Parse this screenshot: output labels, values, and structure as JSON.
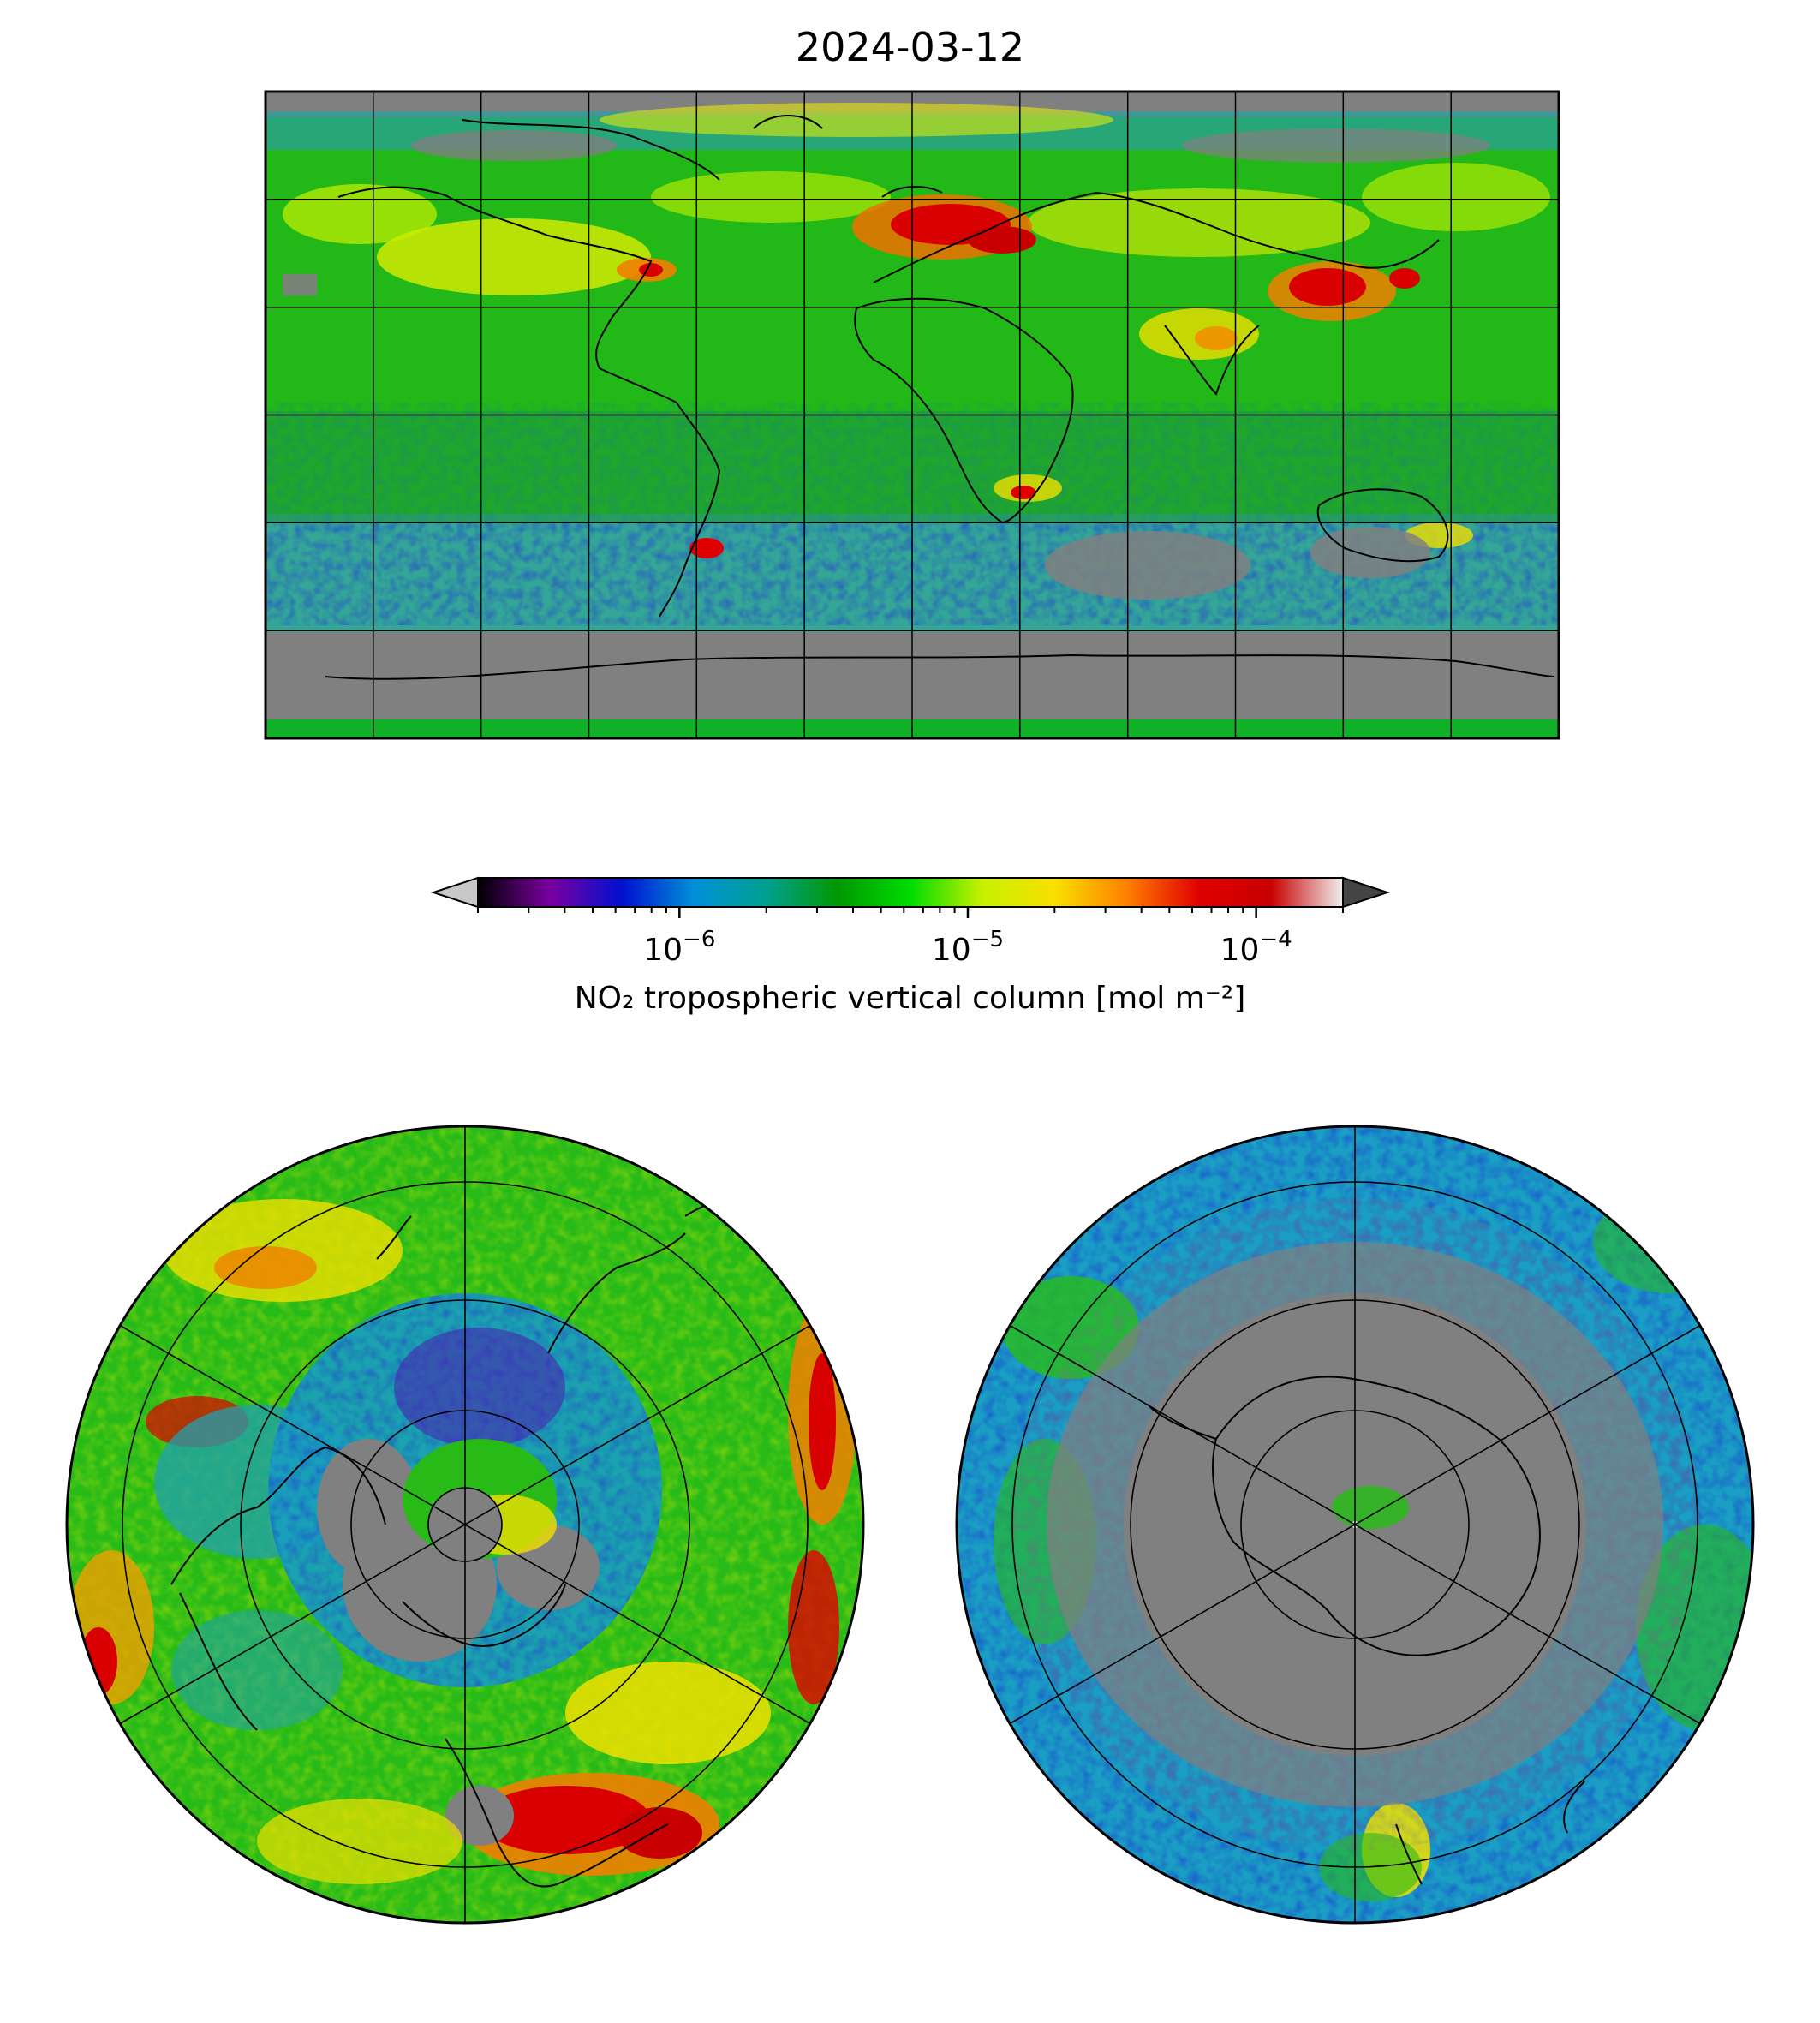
{
  "title": "2024-03-12",
  "colorbar": {
    "label": "NO₂ tropospheric vertical column [mol m⁻²]",
    "scale": "log",
    "range": [
      2e-07,
      0.0002
    ],
    "ticks": [
      {
        "value": 1e-06,
        "base": "10",
        "exp": "−6"
      },
      {
        "value": 1e-05,
        "base": "10",
        "exp": "−5"
      },
      {
        "value": 0.0001,
        "base": "10",
        "exp": "−4"
      }
    ],
    "extend": "both",
    "under_color": "#c8c8c8",
    "over_color": "#444444",
    "stops": [
      "#000000",
      "#7a00a0",
      "#0010d0",
      "#0090d8",
      "#00a090",
      "#009800",
      "#00dc00",
      "#c8f000",
      "#f8e000",
      "#ff8000",
      "#e00000",
      "#c80000",
      "#f0f0f0"
    ]
  },
  "chart_data": [
    {
      "type": "map",
      "projection": "plate-carree",
      "extent": "global",
      "gridlines": true,
      "no_data_color": "#808080"
    },
    {
      "type": "map",
      "projection": "north-polar-stereographic",
      "gridlines": true,
      "no_data_color": "#808080"
    },
    {
      "type": "map",
      "projection": "south-polar-stereographic",
      "gridlines": true,
      "no_data_color": "#808080"
    }
  ]
}
